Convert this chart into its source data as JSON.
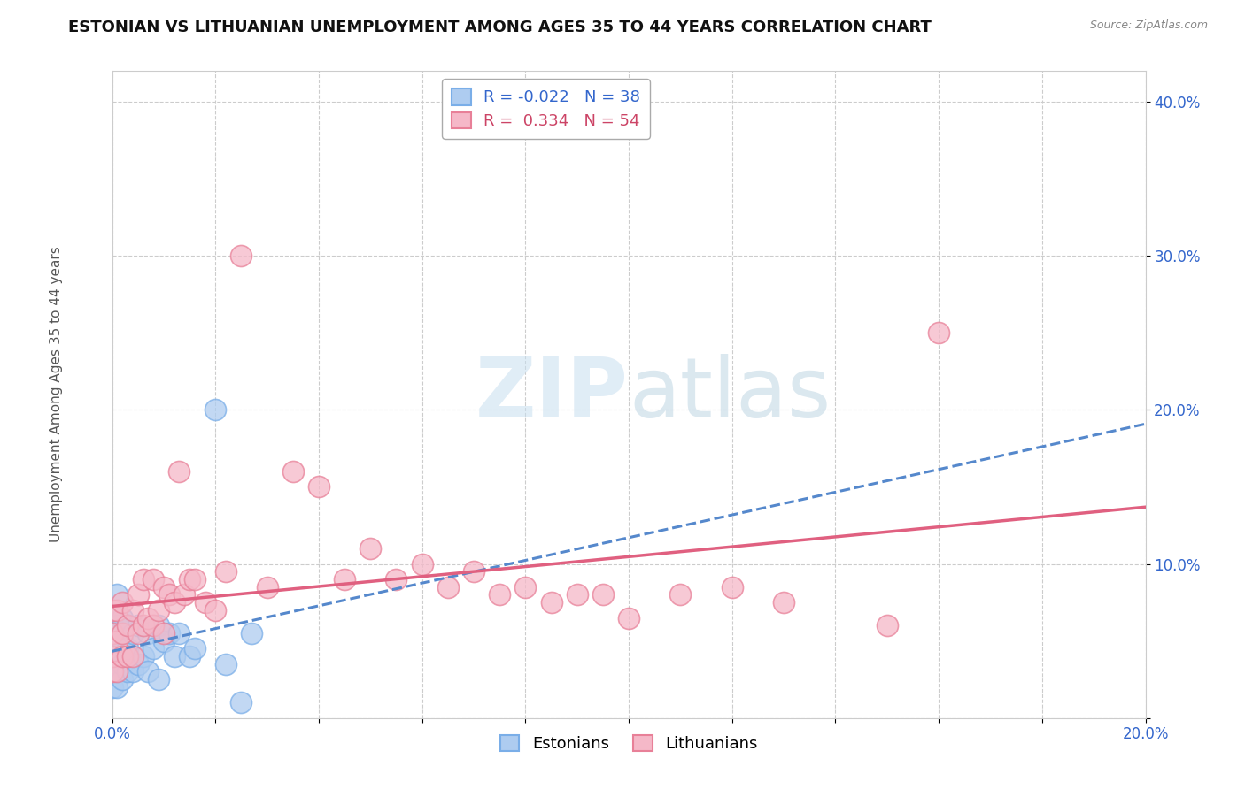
{
  "title": "ESTONIAN VS LITHUANIAN UNEMPLOYMENT AMONG AGES 35 TO 44 YEARS CORRELATION CHART",
  "source": "Source: ZipAtlas.com",
  "ylabel": "Unemployment Among Ages 35 to 44 years",
  "xlim": [
    0.0,
    0.2
  ],
  "ylim": [
    0.0,
    0.42
  ],
  "xticks": [
    0.0,
    0.02,
    0.04,
    0.06,
    0.08,
    0.1,
    0.12,
    0.14,
    0.16,
    0.18,
    0.2
  ],
  "xticklabels": [
    "0.0%",
    "",
    "",
    "",
    "",
    "",
    "",
    "",
    "",
    "",
    "20.0%"
  ],
  "yticks": [
    0.0,
    0.1,
    0.2,
    0.3,
    0.4
  ],
  "yticklabels": [
    "",
    "10.0%",
    "20.0%",
    "30.0%",
    "40.0%"
  ],
  "grid_color": "#cccccc",
  "background_color": "#ffffff",
  "legend_R_est": "-0.022",
  "legend_N_est": "38",
  "legend_R_lit": "0.334",
  "legend_N_lit": "54",
  "est_face_color": "#aeccf0",
  "est_edge_color": "#7aaee8",
  "lit_face_color": "#f5b8c8",
  "lit_edge_color": "#e88098",
  "est_line_color": "#5588cc",
  "lit_line_color": "#e06080",
  "title_fontsize": 13,
  "axis_label_fontsize": 11,
  "tick_fontsize": 12,
  "legend_fontsize": 13,
  "estonians_x": [
    0.0,
    0.0,
    0.0,
    0.0,
    0.0,
    0.0,
    0.001,
    0.001,
    0.001,
    0.001,
    0.001,
    0.002,
    0.002,
    0.002,
    0.002,
    0.003,
    0.003,
    0.003,
    0.004,
    0.004,
    0.005,
    0.005,
    0.006,
    0.007,
    0.007,
    0.008,
    0.009,
    0.009,
    0.01,
    0.011,
    0.012,
    0.013,
    0.015,
    0.016,
    0.02,
    0.022,
    0.025,
    0.027
  ],
  "estonians_y": [
    0.02,
    0.03,
    0.04,
    0.05,
    0.06,
    0.07,
    0.02,
    0.03,
    0.045,
    0.06,
    0.08,
    0.025,
    0.035,
    0.05,
    0.065,
    0.03,
    0.045,
    0.06,
    0.03,
    0.055,
    0.035,
    0.06,
    0.04,
    0.03,
    0.055,
    0.045,
    0.025,
    0.06,
    0.05,
    0.055,
    0.04,
    0.055,
    0.04,
    0.045,
    0.2,
    0.035,
    0.01,
    0.055
  ],
  "lithuanians_x": [
    0.0,
    0.0,
    0.0,
    0.0,
    0.001,
    0.001,
    0.001,
    0.002,
    0.002,
    0.002,
    0.003,
    0.003,
    0.004,
    0.004,
    0.005,
    0.005,
    0.006,
    0.006,
    0.007,
    0.008,
    0.008,
    0.009,
    0.01,
    0.01,
    0.011,
    0.012,
    0.013,
    0.014,
    0.015,
    0.016,
    0.018,
    0.02,
    0.022,
    0.025,
    0.03,
    0.035,
    0.04,
    0.045,
    0.05,
    0.055,
    0.06,
    0.065,
    0.07,
    0.075,
    0.08,
    0.085,
    0.09,
    0.095,
    0.1,
    0.11,
    0.12,
    0.13,
    0.15,
    0.16
  ],
  "lithuanians_y": [
    0.03,
    0.04,
    0.055,
    0.07,
    0.03,
    0.05,
    0.07,
    0.04,
    0.055,
    0.075,
    0.04,
    0.06,
    0.04,
    0.07,
    0.055,
    0.08,
    0.06,
    0.09,
    0.065,
    0.06,
    0.09,
    0.07,
    0.055,
    0.085,
    0.08,
    0.075,
    0.16,
    0.08,
    0.09,
    0.09,
    0.075,
    0.07,
    0.095,
    0.3,
    0.085,
    0.16,
    0.15,
    0.09,
    0.11,
    0.09,
    0.1,
    0.085,
    0.095,
    0.08,
    0.085,
    0.075,
    0.08,
    0.08,
    0.065,
    0.08,
    0.085,
    0.075,
    0.06,
    0.25
  ]
}
